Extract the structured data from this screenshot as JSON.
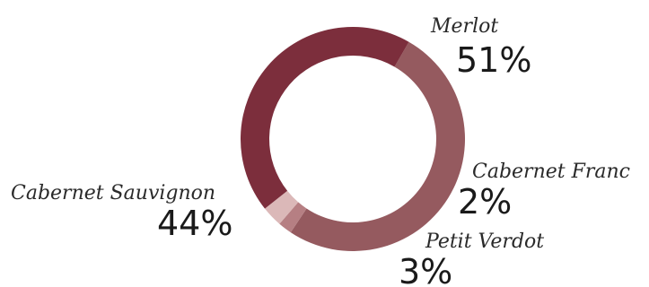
{
  "chart_data": {
    "type": "pie",
    "style": "donut",
    "slices": [
      {
        "label": "Merlot",
        "value": 51,
        "display": "51%",
        "color": "#955a5f"
      },
      {
        "label": "Cabernet Franc",
        "value": 2,
        "display": "2%",
        "color": "#b67f83"
      },
      {
        "label": "Petit Verdot",
        "value": 3,
        "display": "3%",
        "color": "#dbb8b8"
      },
      {
        "label": "Cabernet Sauvignon",
        "value": 44,
        "display": "44%",
        "color": "#7c2e3c"
      }
    ]
  }
}
